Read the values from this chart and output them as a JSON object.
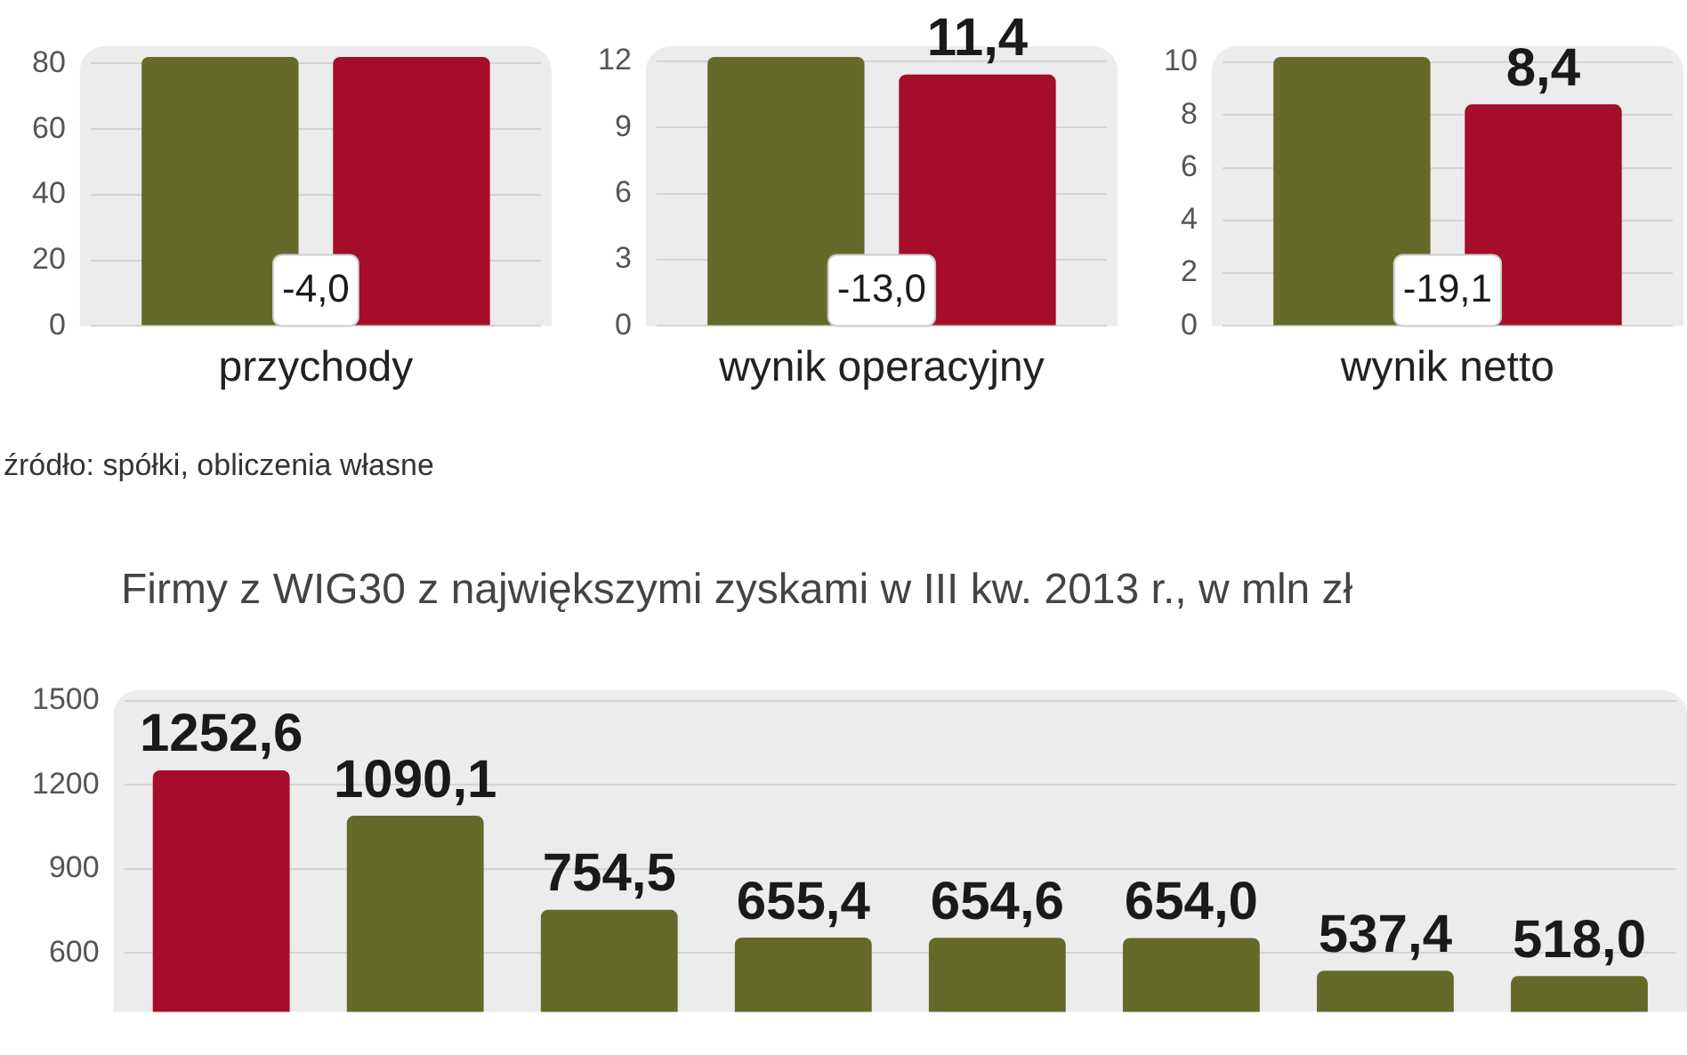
{
  "chart_data": [
    {
      "type": "bar",
      "categories": [
        "przychody"
      ],
      "ylim": [
        0,
        82
      ],
      "yticks": [
        0,
        20,
        40,
        60,
        80
      ],
      "grid": "y",
      "series": [
        {
          "color": "#656a2a",
          "values": [
            82
          ]
        },
        {
          "color": "#a50d2b",
          "values": [
            82
          ]
        }
      ],
      "annotations": [
        "-4,0",
        "źródło: spółki, obliczenia własne"
      ]
    },
    {
      "type": "bar",
      "categories": [
        "wynik operacyjny"
      ],
      "ylim": [
        0,
        12.2
      ],
      "yticks": [
        0,
        3,
        6,
        9,
        12
      ],
      "grid": "y",
      "series": [
        {
          "color": "#656a2a",
          "values": [
            12.2
          ]
        },
        {
          "color": "#a50d2b",
          "values": [
            11.4
          ],
          "value_labels": [
            "11,4"
          ]
        }
      ],
      "annotations": [
        "-13,0"
      ]
    },
    {
      "type": "bar",
      "categories": [
        "wynik netto"
      ],
      "ylim": [
        0,
        10.2
      ],
      "yticks": [
        0,
        2,
        4,
        6,
        8,
        10
      ],
      "grid": "y",
      "series": [
        {
          "color": "#656a2a",
          "values": [
            10.2
          ]
        },
        {
          "color": "#a50d2b",
          "values": [
            8.4
          ],
          "value_labels": [
            "8,4"
          ]
        }
      ],
      "annotations": [
        "-19,1"
      ]
    },
    {
      "type": "bar",
      "title": "Firmy z WIG30 z największymi zyskami w III kw. 2013 r., w mln zł",
      "categories": [
        null,
        null,
        null,
        null,
        null,
        null,
        null,
        null
      ],
      "ylim": [
        390,
        1500
      ],
      "yticks": [
        600,
        900,
        1200,
        1500
      ],
      "grid": "y",
      "tick_labels": "y",
      "values": [
        1252.6,
        1090.1,
        754.5,
        655.4,
        654.6,
        654.0,
        537.4,
        518.0
      ],
      "colors": [
        "#a50d2b",
        "#656a2a",
        "#656a2a",
        "#656a2a",
        "#656a2a",
        "#656a2a",
        "#656a2a",
        "#656a2a"
      ],
      "value_labels": [
        "1252,6",
        "1090,1",
        "754,5",
        "655,4",
        "654,6",
        "654,0",
        "537,4",
        "518,0"
      ]
    }
  ]
}
